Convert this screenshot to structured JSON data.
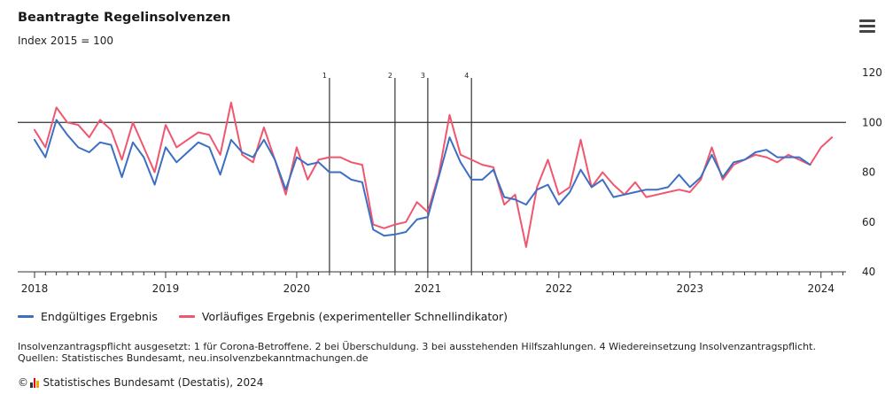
{
  "header": {
    "title": "Beantragte Regelinsolvenzen",
    "subtitle": "Index 2015 = 100",
    "menu_icon": "hamburger-menu-icon"
  },
  "legend": {
    "final_label": "Endgültiges Ergebnis",
    "preliminary_label": "Vorläufiges Ergebnis (experimenteller Schnellindikator)"
  },
  "notes": {
    "line1": "Insolvenzantragspflicht ausgesetzt: 1 für Corona-Betroffene. 2 bei Überschuldung. 3 bei ausstehenden Hilfszahlungen. 4 Wiedereinsetzung Insolvenzantragspflicht.",
    "line2": "Quellen: Statistisches Bundesamt, neu.insolvenzbekanntmachungen.de"
  },
  "credit": {
    "copyright": "©",
    "text": "Statistisches Bundesamt (Destatis), 2024"
  },
  "colors": {
    "final": "#3c6fc4",
    "preliminary": "#f0566f",
    "axis": "#333333"
  },
  "chart_data": {
    "type": "line",
    "title": "Beantragte Regelinsolvenzen",
    "subtitle": "Index 2015 = 100",
    "x_start": "2018-01",
    "x_tick_labels": [
      "2018",
      "2019",
      "2020",
      "2021",
      "2022",
      "2023",
      "2024"
    ],
    "ylim": [
      40,
      120
    ],
    "y_ticks": [
      40,
      60,
      80,
      100,
      120
    ],
    "reference_line": 100,
    "grid": false,
    "legend_position": "bottom",
    "vertical_markers": [
      {
        "label": "1",
        "date": "2020-04"
      },
      {
        "label": "2",
        "date": "2020-10"
      },
      {
        "label": "3",
        "date": "2021-01"
      },
      {
        "label": "4",
        "date": "2021-05"
      }
    ],
    "series": [
      {
        "name": "Endgültiges Ergebnis",
        "values": [
          93,
          86,
          101,
          95,
          90,
          88,
          92,
          91,
          78,
          92,
          86,
          75,
          90,
          84,
          88,
          92,
          90,
          79,
          93,
          88,
          86,
          93,
          85,
          73,
          86,
          83,
          84,
          80,
          80,
          77,
          76,
          57,
          54.5,
          55,
          56,
          61,
          62,
          78,
          94,
          84,
          77,
          77,
          81,
          70,
          69,
          67,
          73,
          75,
          67,
          72,
          81,
          74,
          77,
          70,
          71,
          72,
          73,
          73,
          74,
          79,
          74,
          78,
          87,
          78,
          84,
          85,
          88,
          89,
          86,
          86,
          86,
          83
        ]
      },
      {
        "name": "Vorläufiges Ergebnis (experimenteller Schnellindikator)",
        "values": [
          97,
          90,
          106,
          100,
          99,
          94,
          101,
          97,
          85,
          100,
          90,
          80,
          99,
          90,
          93,
          96,
          95,
          87,
          108,
          87,
          84,
          98,
          85,
          71,
          90,
          77,
          85,
          86,
          86,
          84,
          83,
          59,
          57.5,
          59,
          60,
          68,
          64,
          79,
          103,
          87,
          85,
          83,
          82,
          67,
          71,
          50,
          74,
          85,
          71,
          74,
          93,
          74,
          80,
          75,
          71,
          76,
          70,
          71,
          72,
          73,
          72,
          77,
          90,
          77,
          83,
          85,
          87,
          86,
          84,
          87,
          85,
          83,
          90,
          94
        ]
      }
    ]
  }
}
